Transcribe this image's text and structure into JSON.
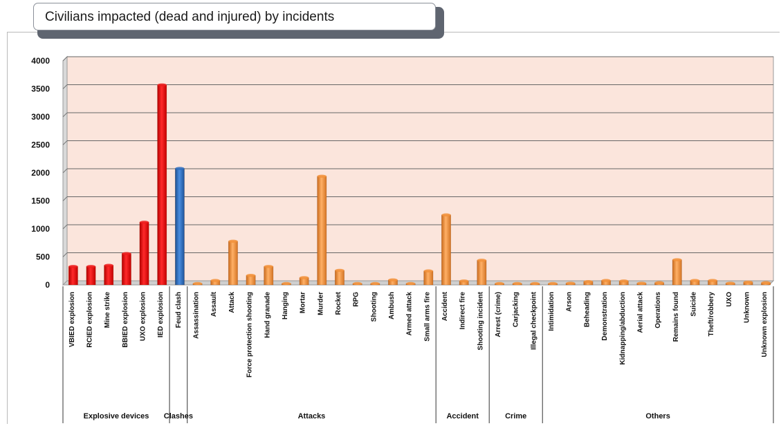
{
  "chart_data": {
    "type": "bar",
    "title": "Civilians impacted (dead and injured) by incidents",
    "xlabel": "",
    "ylabel": "",
    "ylim": [
      0,
      4000
    ],
    "yticks": [
      0,
      500,
      1000,
      1500,
      2000,
      2500,
      3000,
      3500,
      4000
    ],
    "grid": true,
    "legend": "none",
    "colors": {
      "explosive": "#ee1c1c",
      "clash": "#2e6fc0",
      "other": "#f3923a"
    },
    "categories": [
      "VBIED explosion",
      "RCIED explosion",
      "Mine strike",
      "BBIED explosion",
      "UXO explosion",
      "IED explosion",
      "Feud clash",
      "Assassination",
      "Assault",
      "Attack",
      "Force protection shooting",
      "Hand granade",
      "Hanging",
      "Mortar",
      "Murder",
      "Rocket",
      "RPG",
      "Shooting",
      "Ambush",
      "Armed attack",
      "Small arms fire",
      "Accident",
      "Indirect fire",
      "Shooting incident",
      "Arrest (crime)",
      "Carjacking",
      "Illegal checkpoint",
      "Intimidation",
      "Arson",
      "Beheading",
      "Demonstration",
      "Kidnapping/abduction",
      "Aerial attack",
      "Operations",
      "Remains found",
      "Suicide",
      "Theft/robbery",
      "UXO",
      "Unknown",
      "Unknown explosion"
    ],
    "values": [
      330,
      330,
      350,
      560,
      1120,
      3570,
      2080,
      20,
      80,
      780,
      170,
      330,
      10,
      130,
      1940,
      260,
      20,
      20,
      90,
      20,
      250,
      1250,
      70,
      440,
      15,
      15,
      15,
      20,
      30,
      60,
      80,
      70,
      30,
      40,
      450,
      80,
      80,
      30,
      50,
      40
    ],
    "groups": [
      {
        "name": "Explosive devices",
        "count": 6,
        "color_key": "explosive"
      },
      {
        "name": "Clashes",
        "count": 1,
        "color_key": "clash"
      },
      {
        "name": "Attacks",
        "count": 14,
        "color_key": "other"
      },
      {
        "name": "Accident",
        "count": 3,
        "color_key": "other"
      },
      {
        "name": "Crime",
        "count": 3,
        "color_key": "other"
      },
      {
        "name": "Others",
        "count": 13,
        "color_key": "other"
      }
    ]
  }
}
